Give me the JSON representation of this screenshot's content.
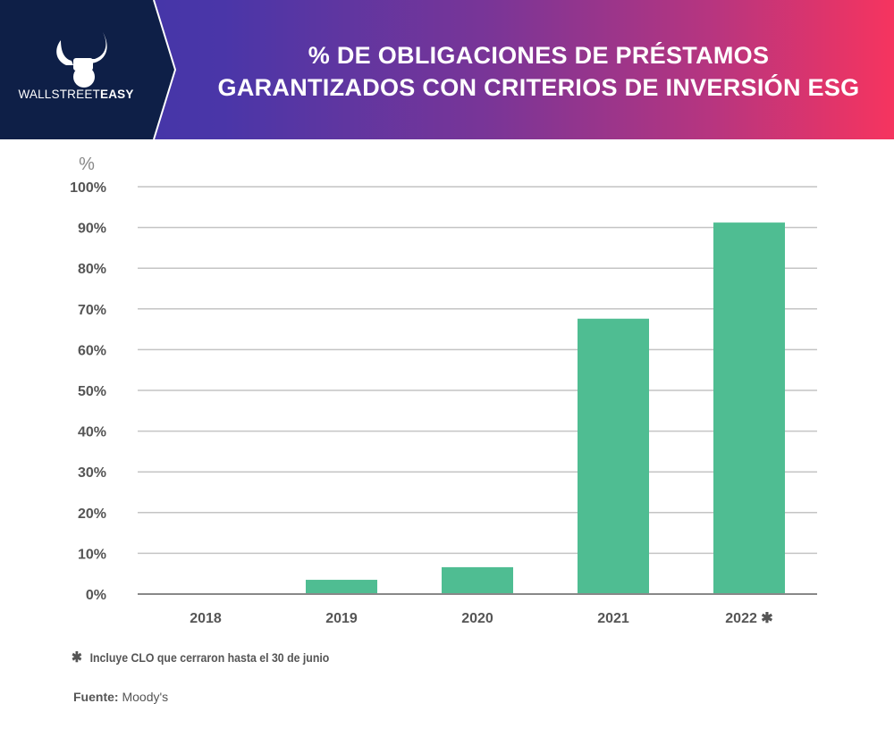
{
  "header": {
    "brand_light": "WALLSTREET",
    "brand_bold": "EASY",
    "title_line1": "% DE OBLIGACIONES DE PRÉSTAMOS",
    "title_line2": "GARANTIZADOS CON CRITERIOS DE INVERSIÓN ESG",
    "logo_icon": "bull-horns-fist-icon"
  },
  "colors": {
    "bar": "#4fbd92",
    "logo_bg": "#0e1f47",
    "gradient_start": "#3d36a8",
    "gradient_end": "#f6345f",
    "grid": "#c4c4c4",
    "axis": "#888888",
    "text": "#555555"
  },
  "chart_data": {
    "type": "bar",
    "title": "% DE OBLIGACIONES DE PRÉSTAMOS GARANTIZADOS CON CRITERIOS DE INVERSIÓN ESG",
    "ylabel": "%",
    "xlabel": "",
    "categories": [
      "2018",
      "2019",
      "2020",
      "2021",
      "2022"
    ],
    "category_markers": [
      "",
      "",
      "",
      "",
      "✱"
    ],
    "values": [
      0,
      3.5,
      6.6,
      67.6,
      91.2
    ],
    "ylim": [
      0,
      100
    ],
    "yticks": [
      0,
      10,
      20,
      30,
      40,
      50,
      60,
      70,
      80,
      90,
      100
    ],
    "ytick_labels": [
      "0%",
      "10%",
      "20%",
      "30%",
      "40%",
      "50%",
      "60%",
      "70%",
      "80%",
      "90%",
      "100%"
    ],
    "grid": true,
    "legend": "none"
  },
  "footer": {
    "note_marker": "✱",
    "note": "Incluye CLO que cerraron hasta el 30 de junio",
    "source_label": "Fuente:",
    "source_value": "Moody's"
  }
}
